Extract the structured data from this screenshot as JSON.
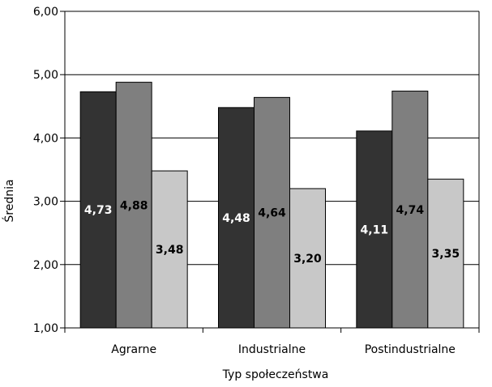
{
  "chart_data": {
    "type": "bar",
    "title": "",
    "xlabel": "Typ społeczeństwa",
    "ylabel": "Średnia",
    "ylim": [
      1,
      6
    ],
    "yticks": [
      "1,00",
      "2,00",
      "3,00",
      "4,00",
      "5,00",
      "6,00"
    ],
    "grid": true,
    "legend": "none",
    "categories": [
      "Agrarne",
      "Industrialne",
      "Postindustrialne"
    ],
    "series": [
      {
        "values": [
          4.73,
          4.48,
          4.11
        ],
        "labels": [
          "4,73",
          "4,48",
          "4,11"
        ],
        "color": "#333333",
        "label_color": "#ffffff"
      },
      {
        "values": [
          4.88,
          4.64,
          4.74
        ],
        "labels": [
          "4,88",
          "4,64",
          "4,74"
        ],
        "color": "#7f7f7f",
        "label_color": "#000000"
      },
      {
        "values": [
          3.48,
          3.2,
          3.35
        ],
        "labels": [
          "3,48",
          "3,20",
          "3,35"
        ],
        "color": "#c8c8c8",
        "label_color": "#000000"
      }
    ]
  }
}
